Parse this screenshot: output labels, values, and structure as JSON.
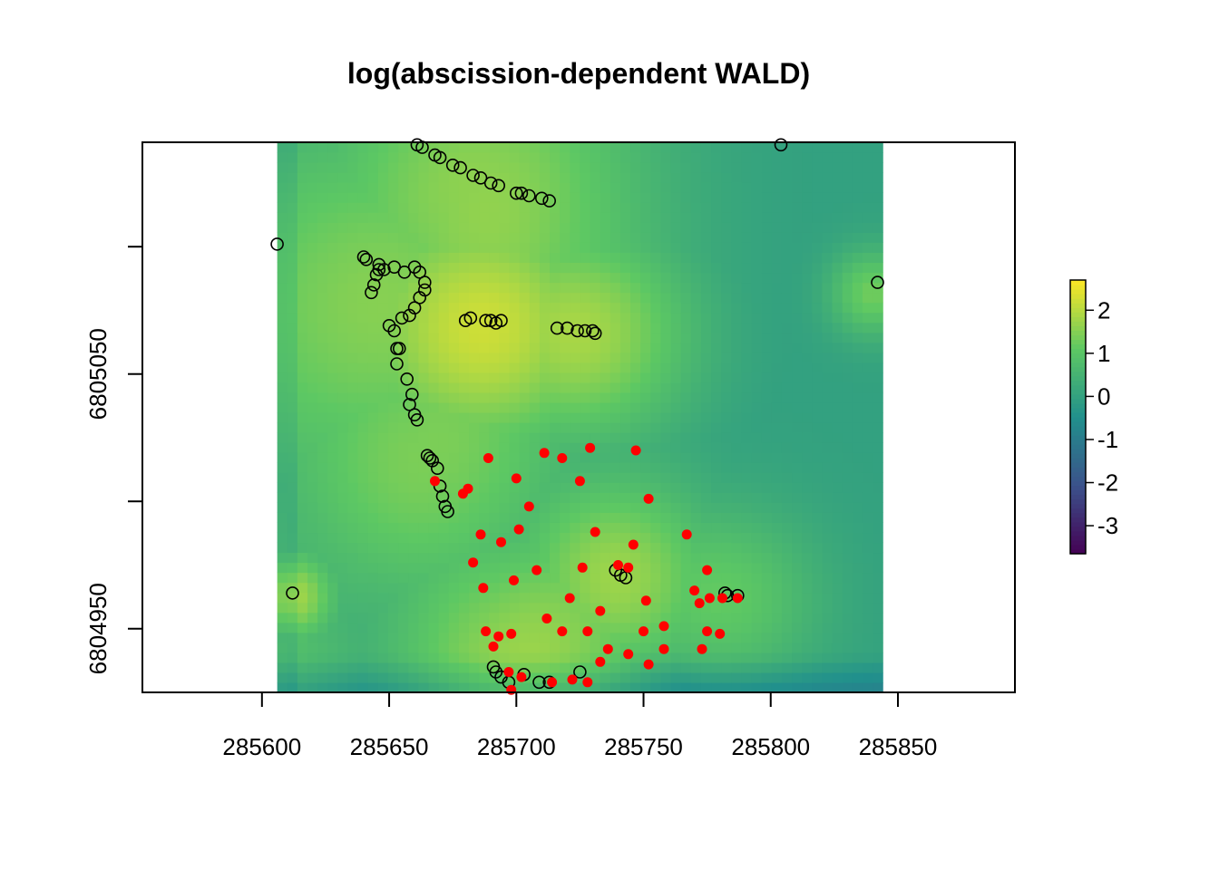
{
  "chart_data": {
    "type": "heatmap",
    "title": "log(abscission-dependent WALD)",
    "xlabel": "",
    "ylabel": "",
    "x_ticks": [
      285600,
      285650,
      285700,
      285750,
      285800,
      285850
    ],
    "x_tick_labels": [
      "285600",
      "285650",
      "285700",
      "285750",
      "285800",
      "285850"
    ],
    "y_ticks": [
      6804950,
      6805000,
      6805050,
      6805100
    ],
    "y_tick_labels": [
      "6804950",
      "",
      "6805050",
      ""
    ],
    "xlim": [
      285553,
      285896
    ],
    "ylim": [
      6804925,
      6805141
    ],
    "raster_extent": {
      "x": [
        285606,
        285844
      ],
      "y": [
        6804925,
        6805141
      ]
    },
    "colorbar": {
      "range": [
        -3.65,
        2.7
      ],
      "ticks": [
        2,
        1,
        0,
        -1,
        -2,
        -3
      ],
      "tick_labels": [
        "2",
        "1",
        "0",
        "-1",
        "-2",
        "-3"
      ],
      "palette": [
        "#440154",
        "#3b528b",
        "#21908c",
        "#5dc863",
        "#fde725"
      ]
    },
    "grid": false,
    "legend": "right",
    "raster_hotspots": [
      {
        "x": 285655,
        "y": 6805080,
        "v": 1.6,
        "r": 55
      },
      {
        "x": 285690,
        "y": 6805068,
        "v": 1.9,
        "r": 35
      },
      {
        "x": 285730,
        "y": 6805066,
        "v": 1.5,
        "r": 30
      },
      {
        "x": 285690,
        "y": 6805130,
        "v": 1.4,
        "r": 45
      },
      {
        "x": 285665,
        "y": 6805010,
        "v": 1.2,
        "r": 40
      },
      {
        "x": 285740,
        "y": 6804970,
        "v": 1.7,
        "r": 28
      },
      {
        "x": 285700,
        "y": 6804935,
        "v": 1.6,
        "r": 35
      },
      {
        "x": 285785,
        "y": 6804962,
        "v": 1.0,
        "r": 25
      },
      {
        "x": 285612,
        "y": 6804963,
        "v": 1.6,
        "r": 12
      },
      {
        "x": 285840,
        "y": 6805082,
        "v": 1.3,
        "r": 12
      }
    ],
    "series": [
      {
        "name": "open-circles",
        "marker": "open circle",
        "color": "#000000",
        "x": [
          285661,
          285663,
          285668,
          285670,
          285675,
          285678,
          285683,
          285686,
          285690,
          285693,
          285700,
          285702,
          285705,
          285710,
          285713,
          285804,
          285606,
          285640,
          285641,
          285646,
          285648,
          285652,
          285656,
          285660,
          285662,
          285664,
          285664,
          285662,
          285660,
          285658,
          285655,
          285650,
          285652,
          285653,
          285654,
          285645,
          285644,
          285643,
          285646,
          285680,
          285682,
          285688,
          285690,
          285692,
          285694,
          285716,
          285720,
          285724,
          285727,
          285730,
          285731,
          285653,
          285657,
          285659,
          285658,
          285660,
          285661,
          285665,
          285666,
          285667,
          285669,
          285670,
          285671,
          285672,
          285673,
          285612,
          285739,
          285741,
          285743,
          285782,
          285783,
          285787,
          285691,
          285692,
          285694,
          285697,
          285703,
          285709,
          285713,
          285725,
          285842
        ],
        "y": [
          6805140,
          6805139,
          6805136,
          6805135,
          6805132,
          6805131,
          6805128,
          6805127,
          6805125,
          6805124,
          6805121,
          6805121,
          6805120,
          6805119,
          6805118,
          6805140,
          6805101,
          6805096,
          6805095,
          6805091,
          6805091,
          6805092,
          6805090,
          6805092,
          6805090,
          6805086,
          6805083,
          6805080,
          6805076,
          6805073,
          6805072,
          6805069,
          6805067,
          6805060,
          6805060,
          6805089,
          6805085,
          6805082,
          6805093,
          6805071,
          6805072,
          6805071,
          6805071,
          6805070,
          6805071,
          6805068,
          6805068,
          6805067,
          6805067,
          6805067,
          6805066,
          6805054,
          6805048,
          6805042,
          6805038,
          6805034,
          6805032,
          6805018,
          6805017,
          6805016,
          6805013,
          6805006,
          6805002,
          6804998,
          6804996,
          6804964,
          6804973,
          6804971,
          6804970,
          6804964,
          6804963,
          6804963,
          6804935,
          6804933,
          6804931,
          6804929,
          6804932,
          6804929,
          6804929,
          6804933,
          6805086
        ]
      },
      {
        "name": "red-points",
        "marker": "filled circle",
        "color": "#ff0000",
        "x": [
          285729,
          285747,
          285711,
          285718,
          285689,
          285700,
          285668,
          285681,
          285679,
          285725,
          285752,
          285705,
          285701,
          285686,
          285694,
          285731,
          285746,
          285767,
          285683,
          285740,
          285726,
          285744,
          285775,
          285708,
          285699,
          285687,
          285721,
          285770,
          285776,
          285772,
          285751,
          285781,
          285733,
          285712,
          285758,
          285728,
          285718,
          285750,
          285787,
          285775,
          285780,
          285688,
          285693,
          285698,
          285691,
          285758,
          285736,
          285744,
          285752,
          285733,
          285773,
          285697,
          285702,
          285714,
          285722,
          285728,
          285698
        ],
        "y": [
          6805021,
          6805020,
          6805019,
          6805017,
          6805017,
          6805009,
          6805008,
          6805005,
          6805003,
          6805008,
          6805001,
          6804998,
          6804989,
          6804987,
          6804984,
          6804988,
          6804983,
          6804987,
          6804976,
          6804975,
          6804974,
          6804974,
          6804973,
          6804973,
          6804969,
          6804966,
          6804962,
          6804965,
          6804962,
          6804960,
          6804961,
          6804962,
          6804957,
          6804954,
          6804951,
          6804949,
          6804949,
          6804949,
          6804962,
          6804949,
          6804948,
          6804949,
          6804947,
          6804948,
          6804943,
          6804942,
          6804942,
          6804940,
          6804936,
          6804937,
          6804942,
          6804933,
          6804931,
          6804929,
          6804930,
          6804929,
          6804926
        ]
      }
    ]
  }
}
